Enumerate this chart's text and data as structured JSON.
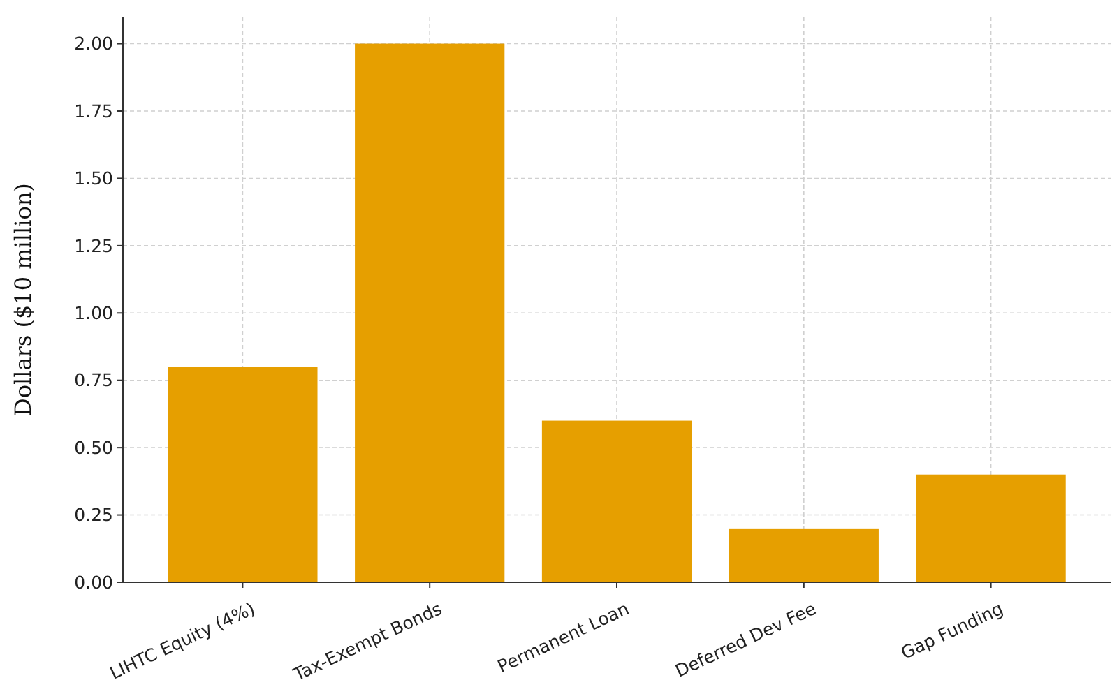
{
  "chart_data": {
    "type": "bar",
    "ylabel": "Dollars ($10 million)",
    "categories": [
      "LIHTC Equity (4%)",
      "Tax-Exempt Bonds",
      "Permanent Loan",
      "Deferred Dev Fee",
      "Gap Funding"
    ],
    "values": [
      0.8,
      2.0,
      0.6,
      0.2,
      0.4
    ],
    "color": "#e69f00",
    "ylim": [
      0,
      2.1
    ],
    "yticks": [
      {
        "value": 0,
        "label": "0.00"
      },
      {
        "value": 0.25,
        "label": "0.25"
      },
      {
        "value": 0.5,
        "label": "0.50"
      },
      {
        "value": 0.75,
        "label": "0.75"
      },
      {
        "value": 1,
        "label": "1.00"
      },
      {
        "value": 1.25,
        "label": "1.25"
      },
      {
        "value": 1.5,
        "label": "1.50"
      },
      {
        "value": 1.75,
        "label": "1.75"
      },
      {
        "value": 2,
        "label": "2.00"
      }
    ],
    "grid": true
  }
}
